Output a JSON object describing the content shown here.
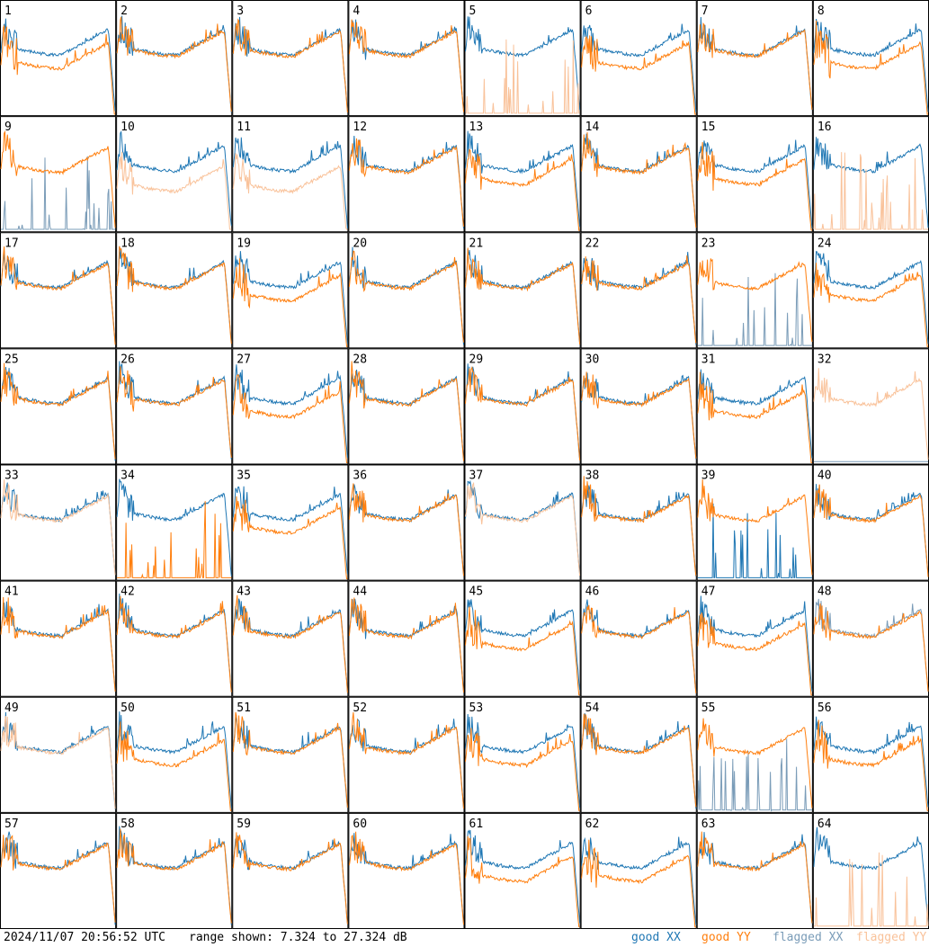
{
  "chart_data": {
    "type": "line",
    "panel_labels": [
      "1",
      "2",
      "3",
      "4",
      "5",
      "6",
      "7",
      "8",
      "9",
      "10",
      "11",
      "12",
      "13",
      "14",
      "15",
      "16",
      "17",
      "18",
      "19",
      "20",
      "21",
      "22",
      "23",
      "24",
      "25",
      "26",
      "27",
      "28",
      "29",
      "30",
      "31",
      "32",
      "33",
      "34",
      "35",
      "36",
      "37",
      "38",
      "39",
      "40",
      "41",
      "42",
      "43",
      "44",
      "45",
      "46",
      "47",
      "48",
      "49",
      "50",
      "51",
      "52",
      "53",
      "54",
      "55",
      "56",
      "57",
      "58",
      "59",
      "60",
      "61",
      "62",
      "63",
      "64"
    ],
    "grid": {
      "rows": 8,
      "cols": 8
    },
    "ylim": [
      7.324,
      27.324
    ],
    "yunit": "dB",
    "legend": [
      "good XX",
      "good YY",
      "flagged XX",
      "flagged YY"
    ],
    "legend_position": "bottom-right",
    "colors": {
      "good_xx": "#1f77b4",
      "good_yy": "#ff7f0e",
      "flagged_xx": "#7a9cb8",
      "flagged_yy": "#f9c29a"
    },
    "panel_states": {
      "normal": [
        2,
        3,
        4,
        7,
        12,
        14,
        17,
        18,
        20,
        21,
        22,
        25,
        26,
        28,
        29,
        30,
        36,
        38,
        40,
        41,
        42,
        43,
        46,
        51,
        52,
        54,
        57,
        58,
        59,
        60,
        63
      ],
      "xx_high": [
        1,
        6,
        8,
        13,
        15,
        19,
        24,
        27,
        31,
        35,
        45,
        47,
        50,
        53,
        56,
        61,
        62
      ],
      "yy_flat_zero": [
        5,
        16,
        64
      ],
      "xx_flat_zero": [
        39
      ],
      "xx_flagged_zero": [
        9,
        23,
        55
      ],
      "yy_flagged_low": [
        10,
        11
      ],
      "yy_flagged": [
        33,
        37,
        49
      ],
      "xx_flagged": [
        48
      ],
      "yy_spiky_zero": [
        34
      ],
      "both_flagged_yy_only": [
        32
      ]
    }
  },
  "footer": {
    "timestamp": "2024/11/07 20:56:52 UTC",
    "range_text": "range shown: 7.324 to 27.324 dB",
    "legend_good_xx": "good XX",
    "legend_good_yy": "good YY",
    "legend_flagged_xx": "flagged XX",
    "legend_flagged_yy": "flagged YY"
  }
}
